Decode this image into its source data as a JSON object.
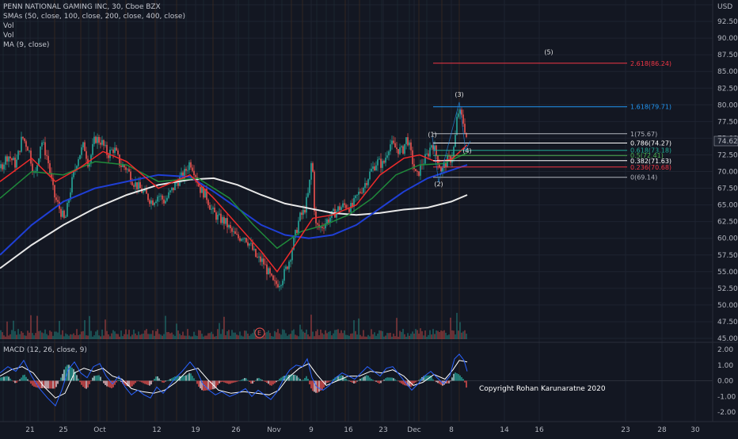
{
  "header": {
    "title": "PENN NATIONAL GAMING INC, 30, Cboe BZX",
    "indicators": [
      "SMAs (50, close, 100, close, 200, close, 400, close)",
      "Vol",
      "Vol",
      "MA (9, close)"
    ],
    "currency": "USD",
    "last_price": "74.62"
  },
  "macd": {
    "title": "MACD (12, 26, close, 9)",
    "ticks": [
      "2.00",
      "1.00",
      "0.00",
      "-1.00",
      "-2.00"
    ],
    "tick_values": [
      2,
      1,
      0,
      -1,
      -2
    ]
  },
  "copyright": "Copyright Rohan Karunaratne 2020",
  "earnings_marker": "E",
  "colors": {
    "background": "#131722",
    "grid": "#1e2330",
    "up": "#26a69a",
    "down": "#ef5350",
    "sma50": "#ef2b2b",
    "sma100": "#1f8a3b",
    "sma200": "#1f3fd6",
    "sma400": "#e8e8e8",
    "macd_line": "#2962ff",
    "signal_line": "#ffffff"
  },
  "chart_data": {
    "type": "line",
    "title": "PENN NATIONAL GAMING INC, 30, Cboe BZX",
    "y_range": [
      45,
      95
    ],
    "y_ticks": [
      "95.00",
      "92.50",
      "90.00",
      "87.50",
      "85.00",
      "82.50",
      "80.00",
      "77.50",
      "75.00",
      "72.50",
      "70.00",
      "67.50",
      "65.00",
      "62.50",
      "60.00",
      "57.50",
      "55.00",
      "52.50",
      "50.00",
      "47.50",
      "45.00"
    ],
    "y_tick_values": [
      95,
      92.5,
      90,
      87.5,
      85,
      82.5,
      80,
      77.5,
      75,
      72.5,
      70,
      67.5,
      65,
      62.5,
      60,
      57.5,
      55,
      52.5,
      50,
      47.5,
      45
    ],
    "x_ticks": [
      "21",
      "25",
      "Oct",
      "12",
      "19",
      "26",
      "Nov",
      "9",
      "16",
      "23",
      "Dec",
      "8",
      "14",
      "16",
      "23",
      "28",
      "30"
    ],
    "x_tick_positions": [
      38,
      80,
      126,
      198,
      247,
      298,
      346,
      393,
      440,
      484,
      523,
      570,
      637,
      681,
      790,
      836,
      878
    ],
    "price_series": [
      {
        "x": 0,
        "y": 70.5
      },
      {
        "x": 10,
        "y": 72.5
      },
      {
        "x": 20,
        "y": 71
      },
      {
        "x": 28,
        "y": 75.2
      },
      {
        "x": 36,
        "y": 73.5
      },
      {
        "x": 44,
        "y": 69
      },
      {
        "x": 52,
        "y": 74.8
      },
      {
        "x": 60,
        "y": 72
      },
      {
        "x": 68,
        "y": 66.5
      },
      {
        "x": 75,
        "y": 64.5
      },
      {
        "x": 82,
        "y": 62.5
      },
      {
        "x": 90,
        "y": 68
      },
      {
        "x": 98,
        "y": 72
      },
      {
        "x": 106,
        "y": 74
      },
      {
        "x": 112,
        "y": 71
      },
      {
        "x": 120,
        "y": 75
      },
      {
        "x": 128,
        "y": 74.5
      },
      {
        "x": 136,
        "y": 72.5
      },
      {
        "x": 144,
        "y": 73.5
      },
      {
        "x": 152,
        "y": 71
      },
      {
        "x": 160,
        "y": 70.5
      },
      {
        "x": 168,
        "y": 68.5
      },
      {
        "x": 176,
        "y": 67.5
      },
      {
        "x": 184,
        "y": 66.5
      },
      {
        "x": 192,
        "y": 65.5
      },
      {
        "x": 200,
        "y": 66.5
      },
      {
        "x": 208,
        "y": 65.5
      },
      {
        "x": 216,
        "y": 67
      },
      {
        "x": 224,
        "y": 68.5
      },
      {
        "x": 232,
        "y": 69.5
      },
      {
        "x": 240,
        "y": 71.5
      },
      {
        "x": 246,
        "y": 70
      },
      {
        "x": 252,
        "y": 67.5
      },
      {
        "x": 260,
        "y": 66.5
      },
      {
        "x": 268,
        "y": 64
      },
      {
        "x": 276,
        "y": 63
      },
      {
        "x": 284,
        "y": 62.5
      },
      {
        "x": 292,
        "y": 61
      },
      {
        "x": 300,
        "y": 60
      },
      {
        "x": 308,
        "y": 60.5
      },
      {
        "x": 316,
        "y": 59
      },
      {
        "x": 324,
        "y": 57
      },
      {
        "x": 332,
        "y": 56.5
      },
      {
        "x": 340,
        "y": 54.5
      },
      {
        "x": 346,
        "y": 53
      },
      {
        "x": 354,
        "y": 53.5
      },
      {
        "x": 360,
        "y": 55
      },
      {
        "x": 366,
        "y": 57
      },
      {
        "x": 372,
        "y": 60
      },
      {
        "x": 378,
        "y": 63
      },
      {
        "x": 384,
        "y": 64
      },
      {
        "x": 390,
        "y": 67
      },
      {
        "x": 394,
        "y": 72.5
      },
      {
        "x": 398,
        "y": 62
      },
      {
        "x": 404,
        "y": 61.5
      },
      {
        "x": 412,
        "y": 62.5
      },
      {
        "x": 420,
        "y": 63.5
      },
      {
        "x": 428,
        "y": 64.5
      },
      {
        "x": 436,
        "y": 65
      },
      {
        "x": 444,
        "y": 64.5
      },
      {
        "x": 452,
        "y": 66.5
      },
      {
        "x": 460,
        "y": 68
      },
      {
        "x": 468,
        "y": 70
      },
      {
        "x": 476,
        "y": 71.5
      },
      {
        "x": 484,
        "y": 71
      },
      {
        "x": 492,
        "y": 74.2
      },
      {
        "x": 500,
        "y": 73.5
      },
      {
        "x": 508,
        "y": 73
      },
      {
        "x": 514,
        "y": 75.2
      },
      {
        "x": 520,
        "y": 72
      },
      {
        "x": 526,
        "y": 69
      },
      {
        "x": 532,
        "y": 71
      },
      {
        "x": 540,
        "y": 72.5
      },
      {
        "x": 546,
        "y": 74.5
      },
      {
        "x": 552,
        "y": 72
      },
      {
        "x": 558,
        "y": 70
      },
      {
        "x": 564,
        "y": 71.5
      },
      {
        "x": 570,
        "y": 72
      },
      {
        "x": 574,
        "y": 74
      },
      {
        "x": 578,
        "y": 79
      },
      {
        "x": 582,
        "y": 78.5
      },
      {
        "x": 586,
        "y": 77
      },
      {
        "x": 590,
        "y": 74.6
      }
    ],
    "sma50": [
      {
        "x": 0,
        "y": 68.5
      },
      {
        "x": 40,
        "y": 72
      },
      {
        "x": 70,
        "y": 68.5
      },
      {
        "x": 100,
        "y": 70.5
      },
      {
        "x": 130,
        "y": 73
      },
      {
        "x": 160,
        "y": 71.5
      },
      {
        "x": 200,
        "y": 67.5
      },
      {
        "x": 240,
        "y": 69.5
      },
      {
        "x": 270,
        "y": 66
      },
      {
        "x": 300,
        "y": 62
      },
      {
        "x": 330,
        "y": 58
      },
      {
        "x": 350,
        "y": 55
      },
      {
        "x": 370,
        "y": 58.5
      },
      {
        "x": 395,
        "y": 63
      },
      {
        "x": 420,
        "y": 63.5
      },
      {
        "x": 450,
        "y": 65
      },
      {
        "x": 480,
        "y": 69.5
      },
      {
        "x": 510,
        "y": 72
      },
      {
        "x": 530,
        "y": 72.5
      },
      {
        "x": 550,
        "y": 71.5
      },
      {
        "x": 570,
        "y": 71.8
      },
      {
        "x": 590,
        "y": 74
      }
    ],
    "sma100": [
      {
        "x": 0,
        "y": 66
      },
      {
        "x": 40,
        "y": 70
      },
      {
        "x": 80,
        "y": 69.5
      },
      {
        "x": 120,
        "y": 71.5
      },
      {
        "x": 160,
        "y": 71
      },
      {
        "x": 200,
        "y": 68.5
      },
      {
        "x": 250,
        "y": 69
      },
      {
        "x": 290,
        "y": 66
      },
      {
        "x": 320,
        "y": 62
      },
      {
        "x": 350,
        "y": 58.5
      },
      {
        "x": 380,
        "y": 61
      },
      {
        "x": 410,
        "y": 62
      },
      {
        "x": 440,
        "y": 63.5
      },
      {
        "x": 470,
        "y": 66
      },
      {
        "x": 500,
        "y": 69.5
      },
      {
        "x": 530,
        "y": 71
      },
      {
        "x": 560,
        "y": 71.2
      },
      {
        "x": 590,
        "y": 72.8
      }
    ],
    "sma200": [
      {
        "x": 0,
        "y": 57.5
      },
      {
        "x": 40,
        "y": 62
      },
      {
        "x": 80,
        "y": 65.5
      },
      {
        "x": 120,
        "y": 67.5
      },
      {
        "x": 160,
        "y": 68.5
      },
      {
        "x": 200,
        "y": 69.5
      },
      {
        "x": 240,
        "y": 69.2
      },
      {
        "x": 270,
        "y": 67
      },
      {
        "x": 300,
        "y": 64.5
      },
      {
        "x": 330,
        "y": 62
      },
      {
        "x": 360,
        "y": 60.5
      },
      {
        "x": 390,
        "y": 60
      },
      {
        "x": 420,
        "y": 60.5
      },
      {
        "x": 450,
        "y": 62
      },
      {
        "x": 480,
        "y": 64.5
      },
      {
        "x": 510,
        "y": 67
      },
      {
        "x": 540,
        "y": 69
      },
      {
        "x": 570,
        "y": 70.2
      },
      {
        "x": 590,
        "y": 71
      }
    ],
    "sma400": [
      {
        "x": 0,
        "y": 55.5
      },
      {
        "x": 40,
        "y": 59
      },
      {
        "x": 80,
        "y": 62
      },
      {
        "x": 120,
        "y": 64.5
      },
      {
        "x": 160,
        "y": 66.5
      },
      {
        "x": 200,
        "y": 68
      },
      {
        "x": 240,
        "y": 68.8
      },
      {
        "x": 270,
        "y": 69
      },
      {
        "x": 300,
        "y": 68
      },
      {
        "x": 330,
        "y": 66.5
      },
      {
        "x": 360,
        "y": 65.2
      },
      {
        "x": 390,
        "y": 64.5
      },
      {
        "x": 420,
        "y": 63.8
      },
      {
        "x": 450,
        "y": 63.5
      },
      {
        "x": 480,
        "y": 63.8
      },
      {
        "x": 510,
        "y": 64.3
      },
      {
        "x": 540,
        "y": 64.6
      },
      {
        "x": 570,
        "y": 65.5
      },
      {
        "x": 590,
        "y": 66.5
      }
    ],
    "fib_levels": [
      {
        "label": "2.618(86.24)",
        "value": 86.24,
        "x1": 547,
        "x2": 792,
        "color": "#f23645"
      },
      {
        "label": "1.618(79.71)",
        "value": 79.71,
        "x1": 547,
        "x2": 792,
        "color": "#2196f3"
      },
      {
        "label": "1(75.67)",
        "value": 75.67,
        "x1": 547,
        "x2": 792,
        "color": "#b2b5be"
      },
      {
        "label": "0.786(74.27)",
        "value": 74.27,
        "x1": 547,
        "x2": 792,
        "color": "#ffffff"
      },
      {
        "label": "0.618(73.18)",
        "value": 73.18,
        "x1": 547,
        "x2": 792,
        "color": "#22ab94"
      },
      {
        "label": "0.5(72.41)",
        "value": 72.41,
        "x1": 547,
        "x2": 792,
        "color": "#4caf50"
      },
      {
        "label": "0.382(71.63)",
        "value": 71.63,
        "x1": 547,
        "x2": 792,
        "color": "#ffffff"
      },
      {
        "label": "0.236(70.68)",
        "value": 70.68,
        "x1": 547,
        "x2": 792,
        "color": "#f23645"
      },
      {
        "label": "0(69.14)",
        "value": 69.14,
        "x1": 547,
        "x2": 792,
        "color": "#b2b5be"
      }
    ],
    "wave_labels": [
      {
        "text": "(1)",
        "x": 546,
        "y": 75.2
      },
      {
        "text": "(2)",
        "x": 554,
        "y": 67.8
      },
      {
        "text": "(3)",
        "x": 580,
        "y": 81.2
      },
      {
        "text": "(4)",
        "x": 590,
        "y": 72.8
      },
      {
        "text": "(5)",
        "x": 693,
        "y": 87.6
      }
    ],
    "macd_line": [
      {
        "x": 0,
        "y": 0.5
      },
      {
        "x": 10,
        "y": 0.9
      },
      {
        "x": 20,
        "y": 0.6
      },
      {
        "x": 30,
        "y": 1.3
      },
      {
        "x": 40,
        "y": 0.3
      },
      {
        "x": 50,
        "y": -0.5
      },
      {
        "x": 60,
        "y": -1.1
      },
      {
        "x": 70,
        "y": -1.6
      },
      {
        "x": 78,
        "y": -0.6
      },
      {
        "x": 86,
        "y": 0.7
      },
      {
        "x": 94,
        "y": 1.2
      },
      {
        "x": 102,
        "y": 0.5
      },
      {
        "x": 110,
        "y": 0.2
      },
      {
        "x": 118,
        "y": 0.9
      },
      {
        "x": 126,
        "y": 1.1
      },
      {
        "x": 134,
        "y": 0.3
      },
      {
        "x": 142,
        "y": -0.2
      },
      {
        "x": 150,
        "y": 0.3
      },
      {
        "x": 158,
        "y": -0.4
      },
      {
        "x": 166,
        "y": -0.9
      },
      {
        "x": 174,
        "y": -0.6
      },
      {
        "x": 182,
        "y": -0.9
      },
      {
        "x": 190,
        "y": -1.1
      },
      {
        "x": 198,
        "y": -0.4
      },
      {
        "x": 206,
        "y": -0.8
      },
      {
        "x": 214,
        "y": -0.3
      },
      {
        "x": 222,
        "y": 0.2
      },
      {
        "x": 230,
        "y": 0.6
      },
      {
        "x": 240,
        "y": 1.2
      },
      {
        "x": 248,
        "y": 0.7
      },
      {
        "x": 256,
        "y": -0.2
      },
      {
        "x": 264,
        "y": -0.6
      },
      {
        "x": 272,
        "y": -0.9
      },
      {
        "x": 280,
        "y": -0.7
      },
      {
        "x": 290,
        "y": -1.0
      },
      {
        "x": 300,
        "y": -0.8
      },
      {
        "x": 310,
        "y": -0.5
      },
      {
        "x": 318,
        "y": -1.0
      },
      {
        "x": 326,
        "y": -0.6
      },
      {
        "x": 334,
        "y": -0.9
      },
      {
        "x": 342,
        "y": -1.2
      },
      {
        "x": 350,
        "y": -0.7
      },
      {
        "x": 358,
        "y": 0.1
      },
      {
        "x": 366,
        "y": 0.7
      },
      {
        "x": 374,
        "y": 1.0
      },
      {
        "x": 382,
        "y": 0.9
      },
      {
        "x": 388,
        "y": 1.4
      },
      {
        "x": 394,
        "y": 0.2
      },
      {
        "x": 400,
        "y": -0.4
      },
      {
        "x": 408,
        "y": -0.6
      },
      {
        "x": 416,
        "y": -0.3
      },
      {
        "x": 424,
        "y": 0.2
      },
      {
        "x": 432,
        "y": 0.5
      },
      {
        "x": 440,
        "y": 0.3
      },
      {
        "x": 448,
        "y": 0.1
      },
      {
        "x": 456,
        "y": 0.5
      },
      {
        "x": 464,
        "y": 0.9
      },
      {
        "x": 472,
        "y": 0.6
      },
      {
        "x": 480,
        "y": 0.3
      },
      {
        "x": 488,
        "y": 0.8
      },
      {
        "x": 496,
        "y": 0.9
      },
      {
        "x": 504,
        "y": 0.4
      },
      {
        "x": 512,
        "y": -0.1
      },
      {
        "x": 520,
        "y": -0.6
      },
      {
        "x": 528,
        "y": -0.2
      },
      {
        "x": 536,
        "y": 0.3
      },
      {
        "x": 544,
        "y": 0.6
      },
      {
        "x": 552,
        "y": 0.2
      },
      {
        "x": 560,
        "y": -0.2
      },
      {
        "x": 568,
        "y": 0.3
      },
      {
        "x": 574,
        "y": 1.4
      },
      {
        "x": 580,
        "y": 1.7
      },
      {
        "x": 586,
        "y": 1.3
      },
      {
        "x": 590,
        "y": 0.6
      }
    ],
    "signal_line": [
      {
        "x": 0,
        "y": 0.3
      },
      {
        "x": 14,
        "y": 0.7
      },
      {
        "x": 28,
        "y": 0.9
      },
      {
        "x": 42,
        "y": 0.5
      },
      {
        "x": 56,
        "y": -0.4
      },
      {
        "x": 70,
        "y": -1.1
      },
      {
        "x": 82,
        "y": -0.8
      },
      {
        "x": 94,
        "y": 0.5
      },
      {
        "x": 106,
        "y": 0.8
      },
      {
        "x": 118,
        "y": 0.6
      },
      {
        "x": 130,
        "y": 0.8
      },
      {
        "x": 142,
        "y": 0.3
      },
      {
        "x": 154,
        "y": 0.1
      },
      {
        "x": 166,
        "y": -0.5
      },
      {
        "x": 180,
        "y": -0.7
      },
      {
        "x": 194,
        "y": -0.8
      },
      {
        "x": 208,
        "y": -0.6
      },
      {
        "x": 222,
        "y": -0.1
      },
      {
        "x": 236,
        "y": 0.6
      },
      {
        "x": 250,
        "y": 0.8
      },
      {
        "x": 262,
        "y": 0.1
      },
      {
        "x": 276,
        "y": -0.6
      },
      {
        "x": 292,
        "y": -0.8
      },
      {
        "x": 308,
        "y": -0.7
      },
      {
        "x": 324,
        "y": -0.8
      },
      {
        "x": 340,
        "y": -0.9
      },
      {
        "x": 352,
        "y": -0.6
      },
      {
        "x": 364,
        "y": 0.2
      },
      {
        "x": 378,
        "y": 0.8
      },
      {
        "x": 390,
        "y": 1.1
      },
      {
        "x": 400,
        "y": 0.4
      },
      {
        "x": 412,
        "y": -0.3
      },
      {
        "x": 426,
        "y": 0.0
      },
      {
        "x": 440,
        "y": 0.3
      },
      {
        "x": 454,
        "y": 0.3
      },
      {
        "x": 468,
        "y": 0.6
      },
      {
        "x": 482,
        "y": 0.5
      },
      {
        "x": 496,
        "y": 0.7
      },
      {
        "x": 510,
        "y": 0.3
      },
      {
        "x": 522,
        "y": -0.3
      },
      {
        "x": 534,
        "y": -0.1
      },
      {
        "x": 548,
        "y": 0.4
      },
      {
        "x": 562,
        "y": 0.1
      },
      {
        "x": 572,
        "y": 0.7
      },
      {
        "x": 580,
        "y": 1.3
      },
      {
        "x": 590,
        "y": 1.2
      }
    ]
  }
}
